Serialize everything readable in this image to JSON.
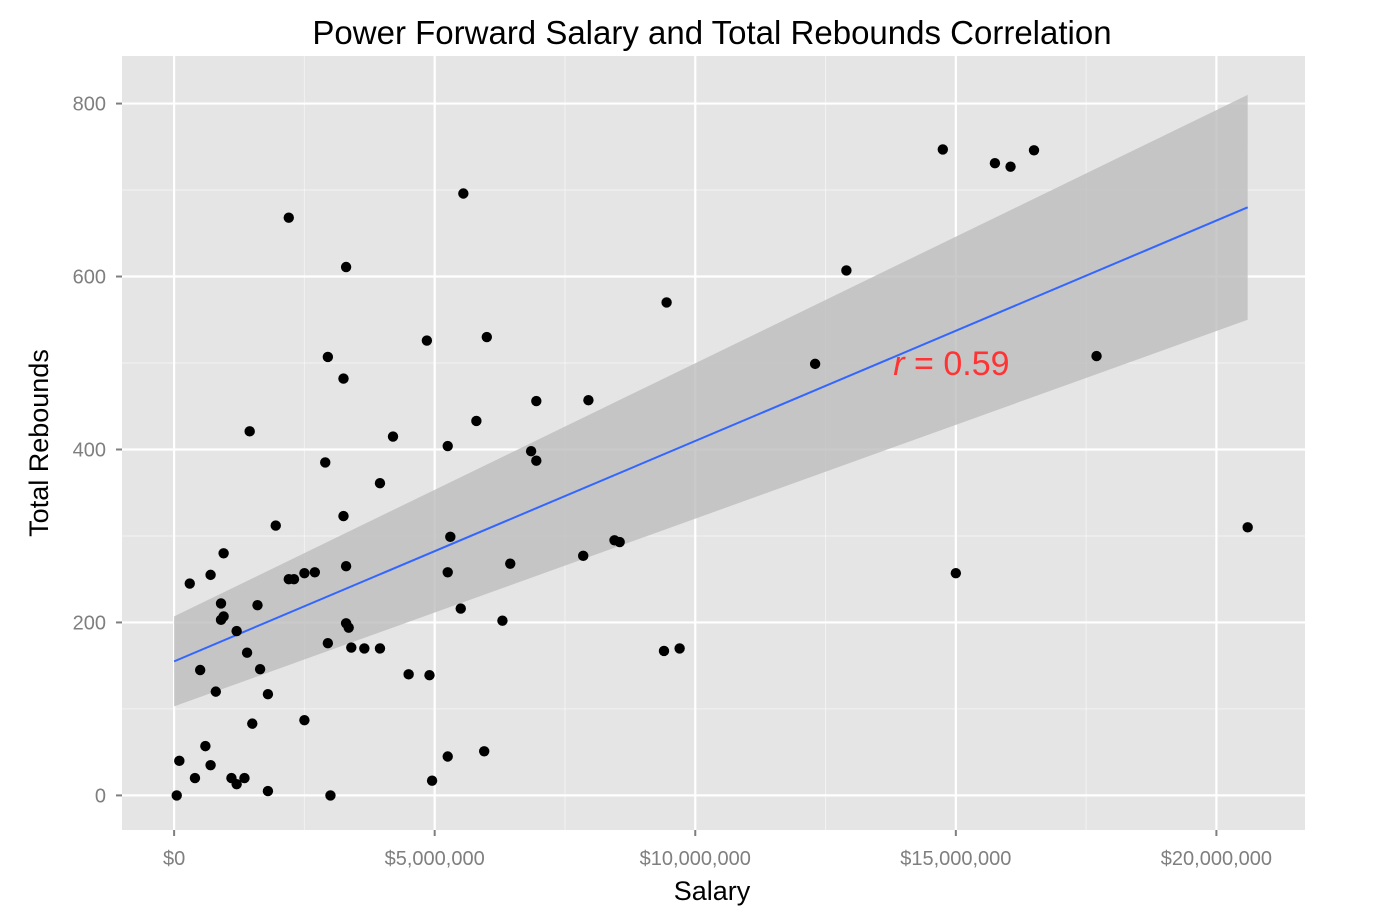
{
  "chart_data": {
    "type": "scatter",
    "title": "Power Forward Salary and Total Rebounds Correlation",
    "xlabel": "Salary",
    "ylabel": "Total Rebounds",
    "xlim": [
      -1000000,
      21700000
    ],
    "ylim": [
      -40,
      855
    ],
    "x_ticks": [
      0,
      5000000,
      10000000,
      15000000,
      20000000
    ],
    "x_tick_labels": [
      "$0",
      "$5,000,000",
      "$10,000,000",
      "$15,000,000",
      "$20,000,000"
    ],
    "y_ticks": [
      0,
      200,
      400,
      600,
      800
    ],
    "y_tick_labels": [
      "0",
      "200",
      "400",
      "600",
      "800"
    ],
    "grid": true,
    "colors": {
      "panel": "#e5e5e5",
      "grid": "#ffffff",
      "point": "#000000",
      "line": "#3366ff",
      "band": "#bdbdbd",
      "annotation": "#ff3333"
    },
    "annotation": {
      "r_symbol": "r",
      "equals_value": " = 0.59",
      "x": 13800000,
      "y": 500
    },
    "regression": {
      "x": [
        0,
        20600000
      ],
      "y": [
        155,
        680
      ],
      "ci_lower": [
        103,
        550
      ],
      "ci_upper": [
        207,
        810
      ]
    },
    "points": [
      [
        50000,
        0
      ],
      [
        100000,
        40
      ],
      [
        300000,
        245
      ],
      [
        400000,
        20
      ],
      [
        500000,
        145
      ],
      [
        600000,
        57
      ],
      [
        700000,
        255
      ],
      [
        700000,
        35
      ],
      [
        800000,
        120
      ],
      [
        900000,
        222
      ],
      [
        900000,
        203
      ],
      [
        950000,
        280
      ],
      [
        950000,
        207
      ],
      [
        1100000,
        20
      ],
      [
        1200000,
        190
      ],
      [
        1200000,
        13
      ],
      [
        1350000,
        20
      ],
      [
        1400000,
        165
      ],
      [
        1450000,
        421
      ],
      [
        1500000,
        83
      ],
      [
        1600000,
        220
      ],
      [
        1650000,
        146
      ],
      [
        1800000,
        117
      ],
      [
        1800000,
        5
      ],
      [
        1950000,
        312
      ],
      [
        2200000,
        668
      ],
      [
        2200000,
        250
      ],
      [
        2300000,
        250
      ],
      [
        2500000,
        257
      ],
      [
        2500000,
        87
      ],
      [
        2700000,
        258
      ],
      [
        2900000,
        385
      ],
      [
        2950000,
        507
      ],
      [
        2950000,
        176
      ],
      [
        3000000,
        0
      ],
      [
        3250000,
        482
      ],
      [
        3250000,
        323
      ],
      [
        3300000,
        611
      ],
      [
        3300000,
        265
      ],
      [
        3300000,
        199
      ],
      [
        3350000,
        194
      ],
      [
        3400000,
        171
      ],
      [
        3650000,
        170
      ],
      [
        3950000,
        361
      ],
      [
        3950000,
        170
      ],
      [
        4200000,
        415
      ],
      [
        4500000,
        140
      ],
      [
        4850000,
        526
      ],
      [
        4900000,
        139
      ],
      [
        4950000,
        17
      ],
      [
        5250000,
        404
      ],
      [
        5250000,
        258
      ],
      [
        5250000,
        45
      ],
      [
        5300000,
        299
      ],
      [
        5500000,
        216
      ],
      [
        5550000,
        696
      ],
      [
        5800000,
        433
      ],
      [
        5950000,
        51
      ],
      [
        6000000,
        530
      ],
      [
        6300000,
        202
      ],
      [
        6450000,
        268
      ],
      [
        6850000,
        398
      ],
      [
        6950000,
        456
      ],
      [
        6950000,
        387
      ],
      [
        7850000,
        277
      ],
      [
        7950000,
        457
      ],
      [
        8450000,
        295
      ],
      [
        8550000,
        293
      ],
      [
        9400000,
        167
      ],
      [
        9450000,
        570
      ],
      [
        9700000,
        170
      ],
      [
        12300000,
        499
      ],
      [
        12900000,
        607
      ],
      [
        14750000,
        747
      ],
      [
        15000000,
        257
      ],
      [
        15750000,
        731
      ],
      [
        16050000,
        727
      ],
      [
        16500000,
        746
      ],
      [
        17700000,
        508
      ],
      [
        20600000,
        310
      ]
    ]
  }
}
